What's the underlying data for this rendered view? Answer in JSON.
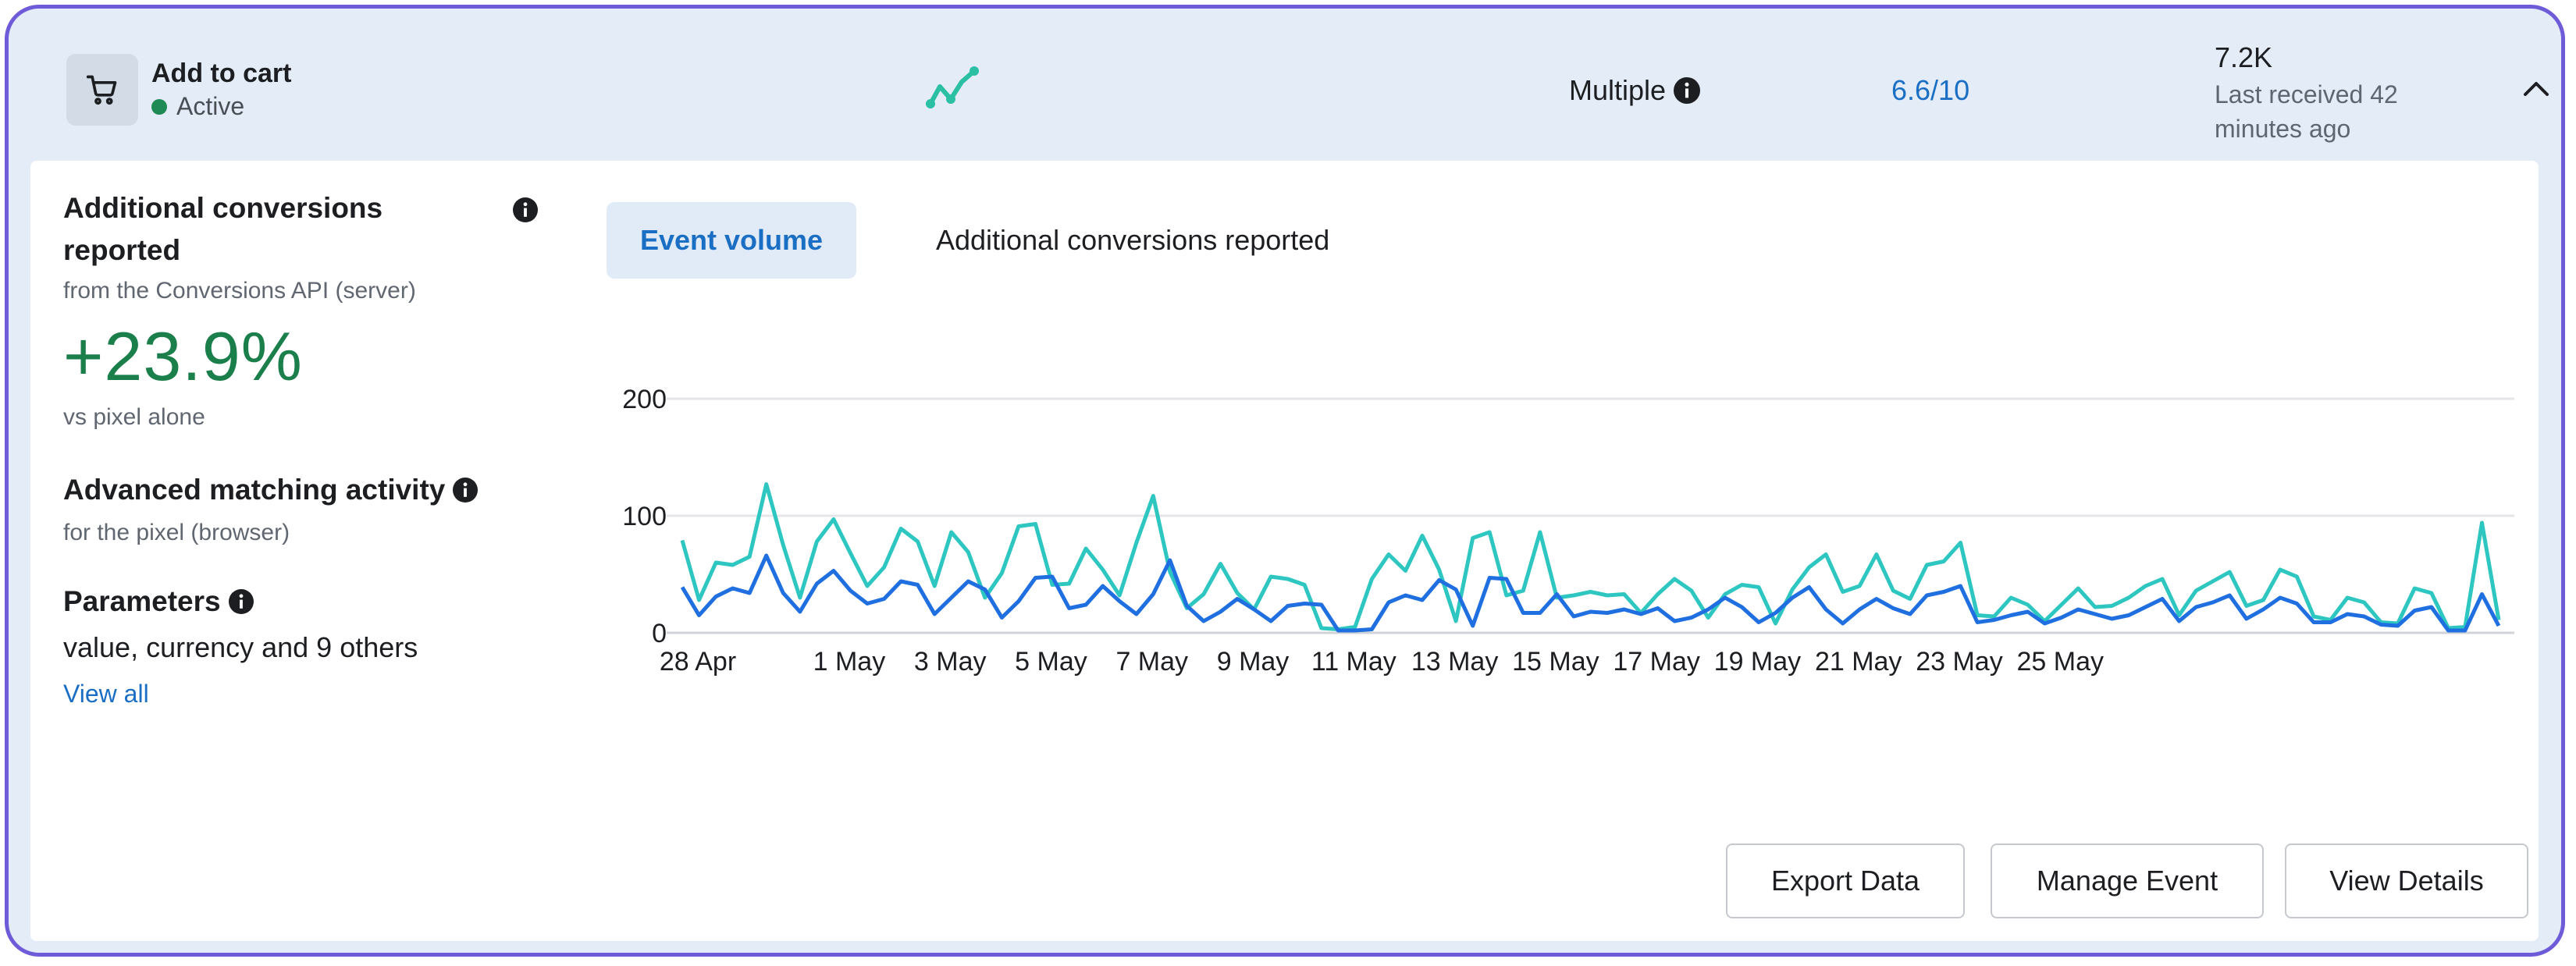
{
  "header": {
    "event_name": "Add to cart",
    "status": "Active",
    "integration": "Multiple",
    "score": "6.6/10",
    "count": "7.2K",
    "last_received": "Last received 42 minutes ago"
  },
  "left": {
    "acr_title": "Additional conversions reported",
    "acr_sub": "from the Conversions API (server)",
    "acr_value": "+23.9%",
    "acr_compare": "vs pixel alone",
    "ama_title": "Advanced matching activity",
    "ama_sub": "for the pixel (browser)",
    "params_title": "Parameters",
    "params_value": "value, currency and 9 others",
    "view_all": "View all"
  },
  "tabs": [
    "Event volume",
    "Additional conversions reported"
  ],
  "buttons": {
    "export": "Export Data",
    "manage": "Manage Event",
    "details": "View Details"
  },
  "colors": {
    "accent": "#1a6fc4",
    "positive": "#1b7f4c",
    "series_light": "#2ec6c0",
    "series_dark": "#1f6fe0"
  },
  "chart_data": {
    "type": "line",
    "ylim": [
      0,
      200
    ],
    "yticks": [
      "0",
      "100",
      "200"
    ],
    "xticks": [
      {
        "label": "28 Apr",
        "x": 0
      },
      {
        "label": "1 May",
        "x": 6
      },
      {
        "label": "3 May",
        "x": 10
      },
      {
        "label": "5 May",
        "x": 14
      },
      {
        "label": "7 May",
        "x": 18
      },
      {
        "label": "9 May",
        "x": 22
      },
      {
        "label": "11 May",
        "x": 26
      },
      {
        "label": "13 May",
        "x": 30
      },
      {
        "label": "15 May",
        "x": 34
      },
      {
        "label": "17 May",
        "x": 38
      },
      {
        "label": "19 May",
        "x": 42
      },
      {
        "label": "21 May",
        "x": 46
      },
      {
        "label": "23 May",
        "x": 50
      },
      {
        "label": "25 May",
        "x": 54
      }
    ],
    "series": [
      {
        "values": [
          79,
          28,
          60,
          58,
          65,
          127,
          75,
          30,
          78,
          97,
          68,
          40,
          56,
          89,
          78,
          40,
          86,
          69,
          30,
          51,
          91,
          93,
          41,
          42,
          72,
          54,
          32,
          77,
          117,
          52,
          21,
          33,
          59,
          34,
          20,
          48,
          46,
          41,
          4,
          3,
          5,
          46,
          67,
          53,
          83,
          54,
          10,
          81,
          86,
          32,
          36,
          86,
          30,
          32,
          35,
          32,
          33,
          17,
          33,
          46,
          36,
          13,
          33,
          41,
          39,
          8,
          37,
          56,
          67,
          35,
          40,
          67,
          36,
          29,
          58,
          61,
          77,
          15,
          14,
          30,
          24,
          10,
          24,
          38,
          22,
          23,
          30,
          40,
          46,
          15,
          36,
          44,
          52,
          23,
          28,
          54,
          48,
          14,
          11,
          30,
          26,
          9,
          8,
          38,
          34,
          4,
          5,
          94,
          11
        ]
      },
      {
        "values": [
          39,
          15,
          31,
          38,
          34,
          66,
          34,
          18,
          42,
          53,
          36,
          25,
          29,
          44,
          41,
          16,
          30,
          44,
          37,
          13,
          27,
          47,
          48,
          21,
          24,
          40,
          27,
          16,
          33,
          62,
          23,
          10,
          18,
          29,
          20,
          10,
          23,
          25,
          24,
          2,
          2,
          3,
          26,
          32,
          28,
          45,
          37,
          6,
          47,
          46,
          17,
          17,
          33,
          14,
          18,
          17,
          20,
          16,
          21,
          10,
          13,
          20,
          30,
          22,
          9,
          17,
          30,
          39,
          20,
          8,
          20,
          29,
          21,
          16,
          32,
          35,
          40,
          9,
          11,
          15,
          18,
          8,
          13,
          20,
          16,
          12,
          15,
          22,
          29,
          10,
          22,
          26,
          32,
          12,
          20,
          30,
          25,
          9,
          9,
          16,
          14,
          7,
          6,
          19,
          22,
          2,
          2,
          33,
          6
        ]
      }
    ]
  }
}
